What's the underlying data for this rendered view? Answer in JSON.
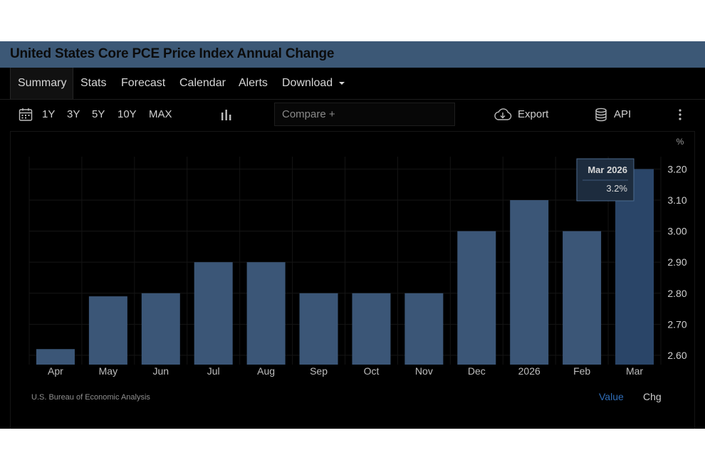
{
  "title": "United States Core PCE Price Index Annual Change",
  "tabs": [
    {
      "label": "Summary"
    },
    {
      "label": "Stats"
    },
    {
      "label": "Forecast"
    },
    {
      "label": "Calendar"
    },
    {
      "label": "Alerts"
    },
    {
      "label": "Download"
    }
  ],
  "toolbar": {
    "ranges": [
      "1Y",
      "3Y",
      "5Y",
      "10Y",
      "MAX"
    ],
    "compare_placeholder": "Compare +",
    "export_label": "Export",
    "api_label": "API"
  },
  "tooltip": {
    "date": "Mar 2026",
    "value": "3.2%"
  },
  "footer": {
    "source": "U.S. Bureau of Economic Analysis",
    "value_label": "Value",
    "chg_label": "Chg"
  },
  "colors": {
    "bar": "#3b5677",
    "bar_highlight": "#2a4568",
    "active_toggle": "#2f6db8",
    "title_bar": "#3c5876"
  },
  "icons": [
    "calendar-icon",
    "bar-chart-icon",
    "cloud-download-icon",
    "database-icon",
    "more-vertical-icon",
    "chevron-down-icon"
  ],
  "chart_data": {
    "type": "bar",
    "categories": [
      "Apr",
      "May",
      "Jun",
      "Jul",
      "Aug",
      "Sep",
      "Oct",
      "Nov",
      "Dec",
      "2026",
      "Feb",
      "Mar"
    ],
    "values": [
      2.62,
      2.79,
      2.8,
      2.9,
      2.9,
      2.8,
      2.8,
      2.8,
      3.0,
      3.1,
      3.0,
      3.2
    ],
    "unit": "%",
    "y_ticks": [
      "3.20",
      "3.10",
      "3.00",
      "2.90",
      "2.80",
      "2.70",
      "2.60"
    ],
    "ylim": [
      2.57,
      3.24
    ],
    "highlighted_index": 11,
    "grid": true
  }
}
